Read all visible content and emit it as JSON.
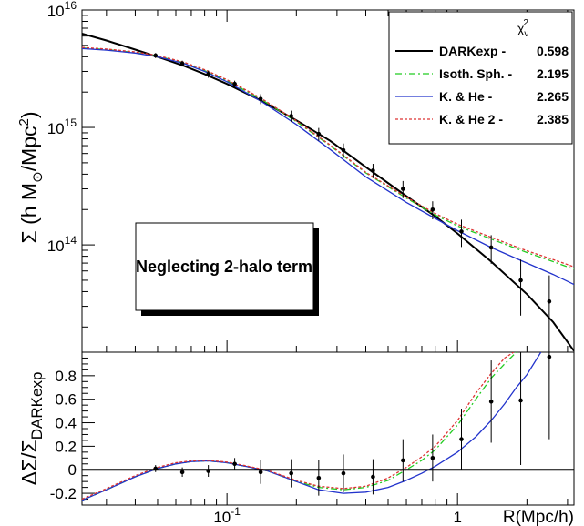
{
  "chart_data": [
    {
      "type": "line",
      "panel": "main",
      "ylabel": "Σ (h M☉/Mpc²)",
      "ylabel_parts": {
        "pre": "Σ (h M",
        "sub": "⊙",
        "mid": "/Mpc",
        "sup": "2",
        "post": ")"
      },
      "xscale": "log",
      "yscale": "log",
      "xlim": [
        0.0235,
        3.2
      ],
      "ylim": [
        12200000000000.0,
        1e+16
      ],
      "y_ticks": [
        {
          "value": 100000000000000.0,
          "base": "10",
          "exp": "14"
        },
        {
          "value": 1000000000000000.0,
          "base": "10",
          "exp": "15"
        },
        {
          "value": 1e+16,
          "base": "10",
          "exp": "16"
        }
      ],
      "annotation": "Neglecting 2-halo term",
      "legend": {
        "placement": "top-right",
        "chi_label": "χ",
        "chi_sub": "ν",
        "chi_sup": "2",
        "entries": [
          {
            "name": "DARKexp -",
            "value": "0.598",
            "color": "#000000",
            "dash": "solid"
          },
          {
            "name": "Isoth. Sph. -",
            "value": "2.195",
            "color": "#22cc22",
            "dash": "dashdot"
          },
          {
            "name": "K. & He -",
            "value": "2.265",
            "color": "#2233cc",
            "dash": "solid"
          },
          {
            "name": "K. & He 2 -",
            "value": "2.385",
            "color": "#dd3333",
            "dash": "dotted"
          }
        ]
      },
      "series": [
        {
          "name": "DARKexp",
          "color": "#000000",
          "dash": "solid",
          "x": [
            0.0235,
            0.03,
            0.04,
            0.05,
            0.065,
            0.08,
            0.1,
            0.14,
            0.2,
            0.28,
            0.4,
            0.6,
            0.8,
            1.0,
            1.4,
            2.0,
            2.6,
            3.2
          ],
          "y": [
            6300000000000000.0,
            5500000000000000.0,
            4600000000000000.0,
            4000000000000000.0,
            3350000000000000.0,
            2850000000000000.0,
            2350000000000000.0,
            1700000000000000.0,
            1150000000000000.0,
            770000000000000.0,
            460000000000000.0,
            260000000000000.0,
            175000000000000.0,
            125000000000000.0,
            72000000000000.0,
            38000000000000.0,
            22000000000000.0,
            12500000000000.0
          ]
        },
        {
          "name": "Isoth. Sph.",
          "color": "#22cc22",
          "dash": "dashdot",
          "x": [
            0.0235,
            0.03,
            0.04,
            0.05,
            0.065,
            0.08,
            0.1,
            0.14,
            0.2,
            0.28,
            0.4,
            0.6,
            0.8,
            1.0,
            1.4,
            2.0,
            2.6,
            3.2
          ],
          "y": [
            4750000000000000.0,
            4600000000000000.0,
            4350000000000000.0,
            4050000000000000.0,
            3550000000000000.0,
            3050000000000000.0,
            2500000000000000.0,
            1750000000000000.0,
            1120000000000000.0,
            700000000000000.0,
            410000000000000.0,
            250000000000000.0,
            180000000000000.0,
            145000000000000.0,
            112000000000000.0,
            86000000000000.0,
            72000000000000.0,
            62000000000000.0
          ]
        },
        {
          "name": "K. & He",
          "color": "#2233cc",
          "dash": "solid",
          "x": [
            0.0235,
            0.03,
            0.04,
            0.05,
            0.065,
            0.08,
            0.1,
            0.14,
            0.2,
            0.28,
            0.4,
            0.6,
            0.8,
            1.0,
            1.4,
            2.0,
            2.6,
            3.2
          ],
          "y": [
            4700000000000000.0,
            4550000000000000.0,
            4300000000000000.0,
            4000000000000000.0,
            3500000000000000.0,
            3000000000000000.0,
            2450000000000000.0,
            1680000000000000.0,
            1060000000000000.0,
            650000000000000.0,
            380000000000000.0,
            230000000000000.0,
            168000000000000.0,
            132000000000000.0,
            95000000000000.0,
            70000000000000.0,
            56000000000000.0,
            46000000000000.0
          ]
        },
        {
          "name": "K. & He 2",
          "color": "#dd3333",
          "dash": "dotted",
          "x": [
            0.0235,
            0.03,
            0.04,
            0.05,
            0.065,
            0.08,
            0.1,
            0.14,
            0.2,
            0.28,
            0.4,
            0.6,
            0.8,
            1.0,
            1.4,
            2.0,
            2.6,
            3.2
          ],
          "y": [
            4800000000000000.0,
            4650000000000000.0,
            4400000000000000.0,
            4100000000000000.0,
            3600000000000000.0,
            3100000000000000.0,
            2550000000000000.0,
            1780000000000000.0,
            1140000000000000.0,
            710000000000000.0,
            415000000000000.0,
            255000000000000.0,
            185000000000000.0,
            150000000000000.0,
            116000000000000.0,
            89000000000000.0,
            75000000000000.0,
            65000000000000.0
          ]
        }
      ],
      "points": {
        "x": [
          0.049,
          0.064,
          0.083,
          0.108,
          0.14,
          0.19,
          0.25,
          0.32,
          0.43,
          0.58,
          0.78,
          1.04,
          1.4,
          1.88,
          2.5
        ],
        "y": [
          4100000000000000.0,
          3500000000000000.0,
          2850000000000000.0,
          2350000000000000.0,
          1750000000000000.0,
          1250000000000000.0,
          880000000000000.0,
          640000000000000.0,
          430000000000000.0,
          300000000000000.0,
          200000000000000.0,
          130000000000000.0,
          95000000000000.0,
          50000000000000.0,
          33000000000000.0
        ],
        "y_err": [
          200000000000000.0,
          200000000000000.0,
          200000000000000.0,
          150000000000000.0,
          170000000000000.0,
          140000000000000.0,
          110000000000000.0,
          90000000000000.0,
          60000000000000.0,
          50000000000000.0,
          35000000000000.0,
          34000000000000.0,
          26000000000000.0,
          25000000000000.0,
          22000000000000.0
        ]
      }
    },
    {
      "type": "line",
      "panel": "residual",
      "xlabel": "R(Mpc/h)",
      "ylabel": "ΔΣ/Σ_DARKexp",
      "ylabel_parts": {
        "pre": "ΔΣ/Σ",
        "sub": "DARKexp"
      },
      "xscale": "log",
      "xlim": [
        0.0235,
        3.2
      ],
      "ylim": [
        -0.3,
        1.0
      ],
      "x_ticks": [
        {
          "value": 0.1,
          "base": "10",
          "exp": "-1"
        },
        {
          "value": 1,
          "label": "1"
        }
      ],
      "y_ticks": [
        "-0.2",
        "0",
        "0.2",
        "0.4",
        "0.6",
        "0.8"
      ],
      "series": [
        {
          "name": "Isoth. Sph.",
          "color": "#22cc22",
          "dash": "dashdot",
          "x": [
            0.0235,
            0.03,
            0.04,
            0.05,
            0.06,
            0.07,
            0.083,
            0.1,
            0.12,
            0.15,
            0.2,
            0.25,
            0.32,
            0.4,
            0.5,
            0.6,
            0.7,
            0.8,
            1.0,
            1.2,
            1.4,
            1.6,
            1.8
          ],
          "y": [
            -0.26,
            -0.17,
            -0.06,
            0.01,
            0.05,
            0.07,
            0.075,
            0.06,
            0.03,
            -0.01,
            -0.1,
            -0.15,
            -0.17,
            -0.15,
            -0.09,
            0.0,
            0.08,
            0.17,
            0.38,
            0.6,
            0.78,
            0.9,
            1.0
          ]
        },
        {
          "name": "K. & He",
          "color": "#2233cc",
          "dash": "solid",
          "x": [
            0.0235,
            0.03,
            0.04,
            0.05,
            0.06,
            0.07,
            0.083,
            0.1,
            0.12,
            0.15,
            0.2,
            0.25,
            0.32,
            0.4,
            0.5,
            0.6,
            0.7,
            0.8,
            1.0,
            1.2,
            1.4,
            1.6,
            1.8,
            2.0,
            2.3
          ],
          "y": [
            -0.26,
            -0.17,
            -0.06,
            0.01,
            0.05,
            0.07,
            0.075,
            0.06,
            0.03,
            -0.01,
            -0.1,
            -0.17,
            -0.2,
            -0.19,
            -0.15,
            -0.09,
            -0.03,
            0.03,
            0.15,
            0.28,
            0.42,
            0.56,
            0.7,
            0.81,
            1.0
          ]
        },
        {
          "name": "K. & He 2",
          "color": "#dd3333",
          "dash": "dotted",
          "x": [
            0.0235,
            0.03,
            0.04,
            0.05,
            0.06,
            0.07,
            0.083,
            0.1,
            0.12,
            0.15,
            0.2,
            0.25,
            0.32,
            0.4,
            0.5,
            0.6,
            0.7,
            0.8,
            1.0,
            1.2,
            1.4,
            1.6,
            1.75
          ],
          "y": [
            -0.25,
            -0.16,
            -0.05,
            0.02,
            0.06,
            0.075,
            0.08,
            0.065,
            0.035,
            -0.005,
            -0.09,
            -0.14,
            -0.16,
            -0.14,
            -0.07,
            0.02,
            0.11,
            0.2,
            0.42,
            0.65,
            0.82,
            0.95,
            1.0
          ]
        },
        {
          "name": "DARKexp",
          "color": "#000000",
          "dash": "solid",
          "x": [
            0.0235,
            3.2
          ],
          "y": [
            0,
            0
          ]
        }
      ],
      "points": {
        "x": [
          0.049,
          0.064,
          0.083,
          0.108,
          0.14,
          0.19,
          0.25,
          0.32,
          0.43,
          0.58,
          0.78,
          1.04,
          1.4,
          1.88,
          2.5
        ],
        "y": [
          0.01,
          -0.02,
          -0.01,
          0.05,
          -0.02,
          -0.03,
          -0.07,
          -0.03,
          -0.06,
          0.08,
          0.1,
          0.26,
          0.58,
          0.59,
          0.96
        ],
        "y_err": [
          0.03,
          0.04,
          0.05,
          0.05,
          0.1,
          0.12,
          0.15,
          0.16,
          0.15,
          0.18,
          0.2,
          0.26,
          0.35,
          0.55,
          0.7
        ]
      }
    }
  ]
}
